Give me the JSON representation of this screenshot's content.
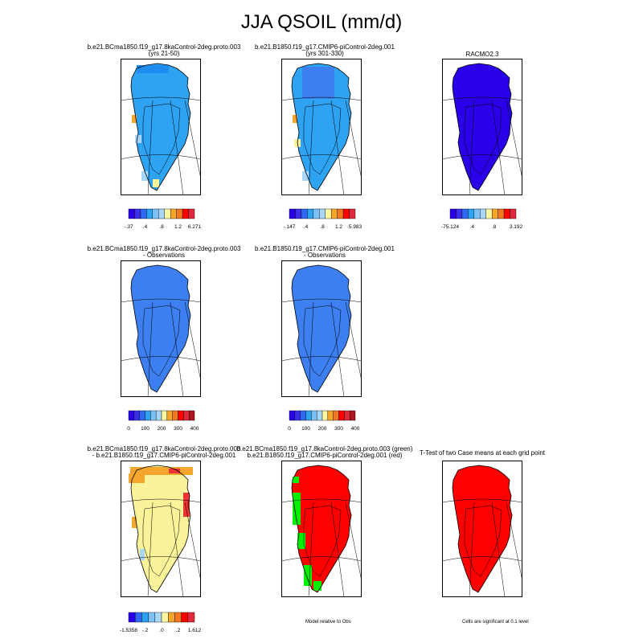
{
  "page_title": "JJA QSOIL (mm/d)",
  "colors": {
    "deep_blue": "#2a00e8",
    "mid_blue": "#1f8cf0",
    "sky_blue": "#2ea3f2",
    "obs_blue": "#3d7ff0",
    "light_blue": "#a8d6f7",
    "pale_yellow": "#fbf39a",
    "orange": "#f5a62c",
    "red": "#ff0000",
    "green": "#00f000"
  },
  "panels": [
    {
      "title": "b.e21.BCma1850.f19_g17.8kaControl-2deg.proto.003",
      "subtitle": "(yrs 21-50)"
    },
    {
      "title": "b.e21.B1850.f19_g17.CMIP6-piControl-2deg.001",
      "subtitle": "(yrs 301-330)"
    },
    {
      "title": "RACMO2.3",
      "subtitle": ""
    },
    {
      "title": "b.e21.BCma1850.f19_g17.8kaControl-2deg.proto.003",
      "subtitle": "- Observations"
    },
    {
      "title": "b.e21.B1850.f19_g17.CMIP6-piControl-2deg.001",
      "subtitle": "- Observations"
    },
    {
      "title": "b.e21.BCma1850.f19_g17.8kaControl-2deg.proto.003",
      "subtitle": "- b.e21.B1850.f19_g17.CMIP6-piControl-2deg.001"
    },
    {
      "title": "b.e21.BCma1850.f19_g17.8kaControl-2deg.proto.003 (green)",
      "subtitle": "b.e21.B1850.f19_g17.CMIP6-piControl-2deg.001 (red)"
    },
    {
      "title": "T-Test of two Case means at each grid point",
      "subtitle": ""
    }
  ],
  "colorbars": [
    {
      "labels": [
        "-.37",
        ".4",
        ".8",
        "1.2",
        "6.271"
      ]
    },
    {
      "labels": [
        "-.147",
        ".4",
        ".8",
        "1.2",
        "5.983"
      ]
    },
    {
      "labels": [
        "-75.124",
        ".4",
        ".8",
        "3.192"
      ]
    },
    {
      "labels": [
        "0",
        "100",
        "200",
        "300",
        "400"
      ]
    },
    {
      "labels": [
        "0",
        "100",
        "200",
        "300",
        "400"
      ]
    },
    {
      "labels": [
        "-1.5358",
        "-.2",
        ".0",
        ".2",
        "1.612"
      ]
    }
  ],
  "notes": {
    "model_relative": "Model relative to Obs",
    "significance": "Cells are significant at 0.1 level"
  }
}
